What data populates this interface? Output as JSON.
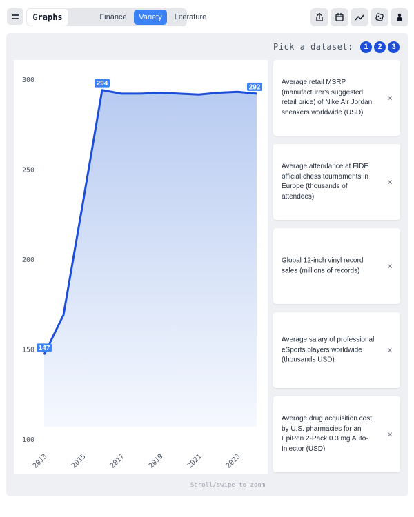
{
  "header": {
    "brand": "Graphs",
    "tabs": [
      {
        "label": "Finance",
        "active": false
      },
      {
        "label": "Variety",
        "active": true
      },
      {
        "label": "Literature",
        "active": false
      }
    ],
    "icons": [
      "share-icon",
      "calendar-icon",
      "trend-icon",
      "dice-icon",
      "person-icon"
    ]
  },
  "picker": {
    "label": "Pick a dataset:",
    "options": [
      "1",
      "2",
      "3"
    ]
  },
  "datasets": [
    {
      "label": "Average retail MSRP (manufacturer's suggested retail price) of Nike Air Jordan sneakers worldwide (USD)"
    },
    {
      "label": "Average attendance at FIDE official chess tournaments in Europe (thousands of attendees)"
    },
    {
      "label": "Global 12-inch vinyl record sales (millions of records)"
    },
    {
      "label": "Average salary of professional eSports players worldwide (thousands USD)"
    },
    {
      "label": "Average drug acquisition cost by U.S. pharmacies for an EpiPen 2-Pack 0.3 mg Auto-Injector (USD)"
    }
  ],
  "close_glyph": "×",
  "footer": {
    "hint": "Scroll/swipe to zoom"
  },
  "colors": {
    "accent": "#3b82f6",
    "line": "#1d4ed8",
    "area_top": "#b8cbf1",
    "area_bottom": "#f5f8fe"
  },
  "chart_data": {
    "type": "area",
    "x": [
      2013,
      2014,
      2015,
      2016,
      2017,
      2018,
      2019,
      2020,
      2021,
      2022,
      2023,
      2024
    ],
    "y": [
      147,
      169,
      231,
      294,
      292,
      292,
      292.5,
      292,
      291.5,
      292.5,
      293,
      292
    ],
    "data_labels": [
      {
        "x": 2013,
        "text": "147"
      },
      {
        "x": 2016,
        "text": "294"
      },
      {
        "x": 2024,
        "text": "292"
      }
    ],
    "x_ticks": [
      "2013",
      "2015",
      "2017",
      "2019",
      "2021",
      "2023"
    ],
    "y_ticks": [
      100,
      150,
      200,
      250,
      300
    ],
    "ylim": [
      100,
      300
    ],
    "xlim": [
      2013,
      2024
    ],
    "grid": false,
    "legend": "none"
  }
}
